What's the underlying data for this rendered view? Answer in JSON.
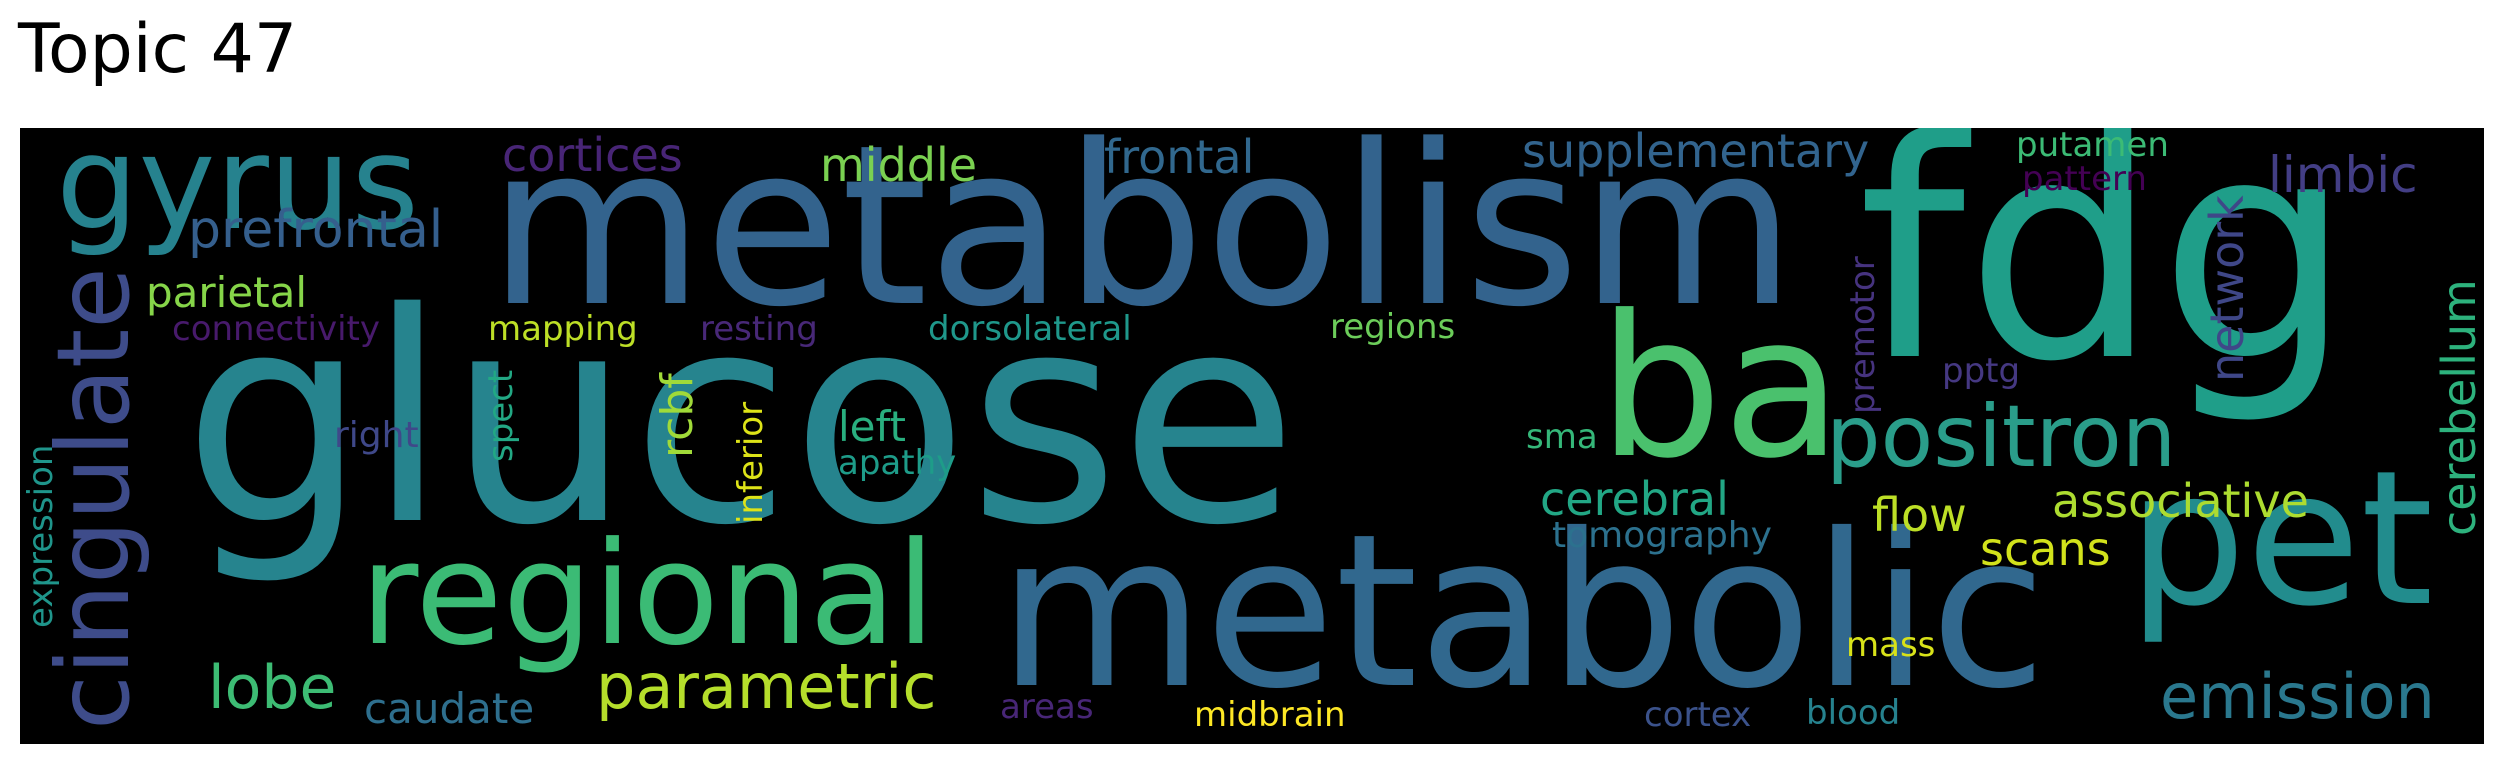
{
  "title": "Topic 47",
  "words": [
    {
      "text": "glucose",
      "color": "#26848e"
    },
    {
      "text": "metabolism",
      "color": "#33638d"
    },
    {
      "text": "fdg",
      "color": "#1f9e89"
    },
    {
      "text": "metabolic",
      "color": "#31688e"
    },
    {
      "text": "pet",
      "color": "#228c8d"
    },
    {
      "text": "ba",
      "color": "#4ac16d"
    },
    {
      "text": "regional",
      "color": "#3bbb75"
    },
    {
      "text": "gyrus",
      "color": "#26828e"
    },
    {
      "text": "positron",
      "color": "#2a9d8a"
    },
    {
      "text": "cingulate",
      "color": "#3e4c8a"
    },
    {
      "text": "parametric",
      "color": "#b5de2b"
    },
    {
      "text": "emission",
      "color": "#2a788e"
    },
    {
      "text": "lobe",
      "color": "#3dbc74"
    },
    {
      "text": "prefrontal",
      "color": "#355f8d"
    },
    {
      "text": "cortices",
      "color": "#482576"
    },
    {
      "text": "middle",
      "color": "#7ad151"
    },
    {
      "text": "frontal",
      "color": "#31688e"
    },
    {
      "text": "supplementary",
      "color": "#32648e"
    },
    {
      "text": "limbic",
      "color": "#433e85"
    },
    {
      "text": "putamen",
      "color": "#3cbb75"
    },
    {
      "text": "pattern",
      "color": "#440154"
    },
    {
      "text": "network",
      "color": "#3f4788"
    },
    {
      "text": "cerebellum",
      "color": "#2db27d"
    },
    {
      "text": "parietal",
      "color": "#86d549"
    },
    {
      "text": "connectivity",
      "color": "#481a6c"
    },
    {
      "text": "mapping",
      "color": "#bddf26"
    },
    {
      "text": "resting",
      "color": "#482878"
    },
    {
      "text": "dorsolateral",
      "color": "#1f988b"
    },
    {
      "text": "regions",
      "color": "#6ccd5a"
    },
    {
      "text": "premotor",
      "color": "#46337f"
    },
    {
      "text": "pptg",
      "color": "#453882"
    },
    {
      "text": "rcbf",
      "color": "#a0da39"
    },
    {
      "text": "inferior",
      "color": "#dde318"
    },
    {
      "text": "spect",
      "color": "#22a884"
    },
    {
      "text": "right",
      "color": "#3f4889"
    },
    {
      "text": "left",
      "color": "#29af7f"
    },
    {
      "text": "apathy",
      "color": "#1e9c89"
    },
    {
      "text": "sma",
      "color": "#35b779"
    },
    {
      "text": "cerebral",
      "color": "#22a785"
    },
    {
      "text": "flow",
      "color": "#bddf26"
    },
    {
      "text": "associative",
      "color": "#addc30"
    },
    {
      "text": "tomography",
      "color": "#2c718e"
    },
    {
      "text": "scans",
      "color": "#d2e21b"
    },
    {
      "text": "expression",
      "color": "#1f958b"
    },
    {
      "text": "caudate",
      "color": "#2e6f8e"
    },
    {
      "text": "areas",
      "color": "#482677"
    },
    {
      "text": "midbrain",
      "color": "#fde725"
    },
    {
      "text": "mass",
      "color": "#d8e219"
    },
    {
      "text": "cortex",
      "color": "#3b528b"
    },
    {
      "text": "blood",
      "color": "#26828e"
    }
  ]
}
